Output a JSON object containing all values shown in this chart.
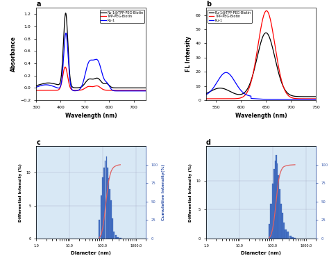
{
  "panel_a": {
    "title": "a",
    "xlabel": "Wavelength (nm)",
    "ylabel": "Absorbance",
    "xlim": [
      300,
      750
    ],
    "ylim": [
      -0.2,
      1.3
    ],
    "yticks": [
      -0.2,
      0.0,
      0.2,
      0.4,
      0.6,
      0.8,
      1.0,
      1.2
    ],
    "xticks": [
      300,
      400,
      500,
      600,
      700
    ],
    "legend": [
      "Ru-1@TPP-PEG-Biotin",
      "TPP-PEG-Biotin",
      "Ru-1"
    ],
    "colors": [
      "black",
      "red",
      "blue"
    ]
  },
  "panel_b": {
    "title": "b",
    "xlabel": "Wavelength (nm)",
    "ylabel": "FL Intensity",
    "xlim": [
      530,
      750
    ],
    "ylim": [
      0,
      65
    ],
    "yticks": [
      0,
      10,
      20,
      30,
      40,
      50,
      60
    ],
    "xticks": [
      550,
      600,
      650,
      700,
      750
    ],
    "legend": [
      "Ru-1@TPP-PEG-Biotin",
      "TPP-PEG-Biotin",
      "Ru-1"
    ],
    "colors": [
      "black",
      "red",
      "blue"
    ]
  },
  "panel_c": {
    "title": "c",
    "xlabel": "Diameter (nm)",
    "ylabel_left": "Differential Intensity (%)",
    "ylabel_right": "Cumulative Intensity(%)",
    "bar_color": "#4472C4",
    "cumulative_color": "#E06060",
    "diameters": [
      80,
      90,
      100,
      110,
      120,
      130,
      140,
      150,
      165,
      180,
      200,
      220,
      250,
      290,
      340
    ],
    "diff_intensity": [
      2.8,
      6.5,
      9.3,
      10.8,
      11.8,
      12.5,
      10.8,
      9.2,
      7.5,
      5.8,
      3.0,
      1.0,
      0.5,
      0.2,
      0.05
    ],
    "cumulative": [
      1,
      5,
      14,
      26,
      40,
      55,
      67,
      77,
      85,
      91,
      95,
      97,
      98.5,
      99.5,
      100
    ],
    "yticks_left": [
      0,
      5,
      10
    ],
    "yticks_right": [
      0,
      25,
      50,
      75,
      100
    ],
    "xlim": [
      1.0,
      2000
    ],
    "ylim_left": [
      0,
      14
    ],
    "ylim_right": [
      0,
      125
    ],
    "xtick_vals": [
      1,
      10,
      100,
      1000
    ],
    "xtick_labels": [
      "1.0",
      "10.0",
      "100.0",
      "1000.0"
    ]
  },
  "panel_d": {
    "title": "d",
    "xlabel": "Diameter (nm)",
    "ylabel_left": "Differential Intensity (%)",
    "ylabel_right": "Cumulative Intensity(%)",
    "bar_color": "#4472C4",
    "cumulative_color": "#E06060",
    "diameters": [
      80,
      90,
      100,
      110,
      120,
      130,
      140,
      150,
      165,
      180,
      200,
      220,
      250,
      290,
      340,
      400,
      470
    ],
    "diff_intensity": [
      2.5,
      6.0,
      9.5,
      12.0,
      13.5,
      14.5,
      13.0,
      11.0,
      8.5,
      6.0,
      4.5,
      2.8,
      1.5,
      1.2,
      0.5,
      0.2,
      0.1
    ],
    "cumulative": [
      1,
      5,
      13,
      25,
      39,
      54,
      67,
      78,
      87,
      92,
      96,
      97.5,
      98.5,
      99.2,
      99.6,
      99.8,
      100
    ],
    "yticks_left": [
      0,
      5,
      10
    ],
    "yticks_right": [
      0,
      25,
      50,
      75,
      100
    ],
    "xlim": [
      1.0,
      2000
    ],
    "ylim_left": [
      0,
      16
    ],
    "ylim_right": [
      0,
      125
    ],
    "xtick_vals": [
      1,
      10,
      100,
      1000
    ],
    "xtick_labels": [
      "1.0",
      "10.0",
      "100.0",
      "1000.0"
    ]
  }
}
